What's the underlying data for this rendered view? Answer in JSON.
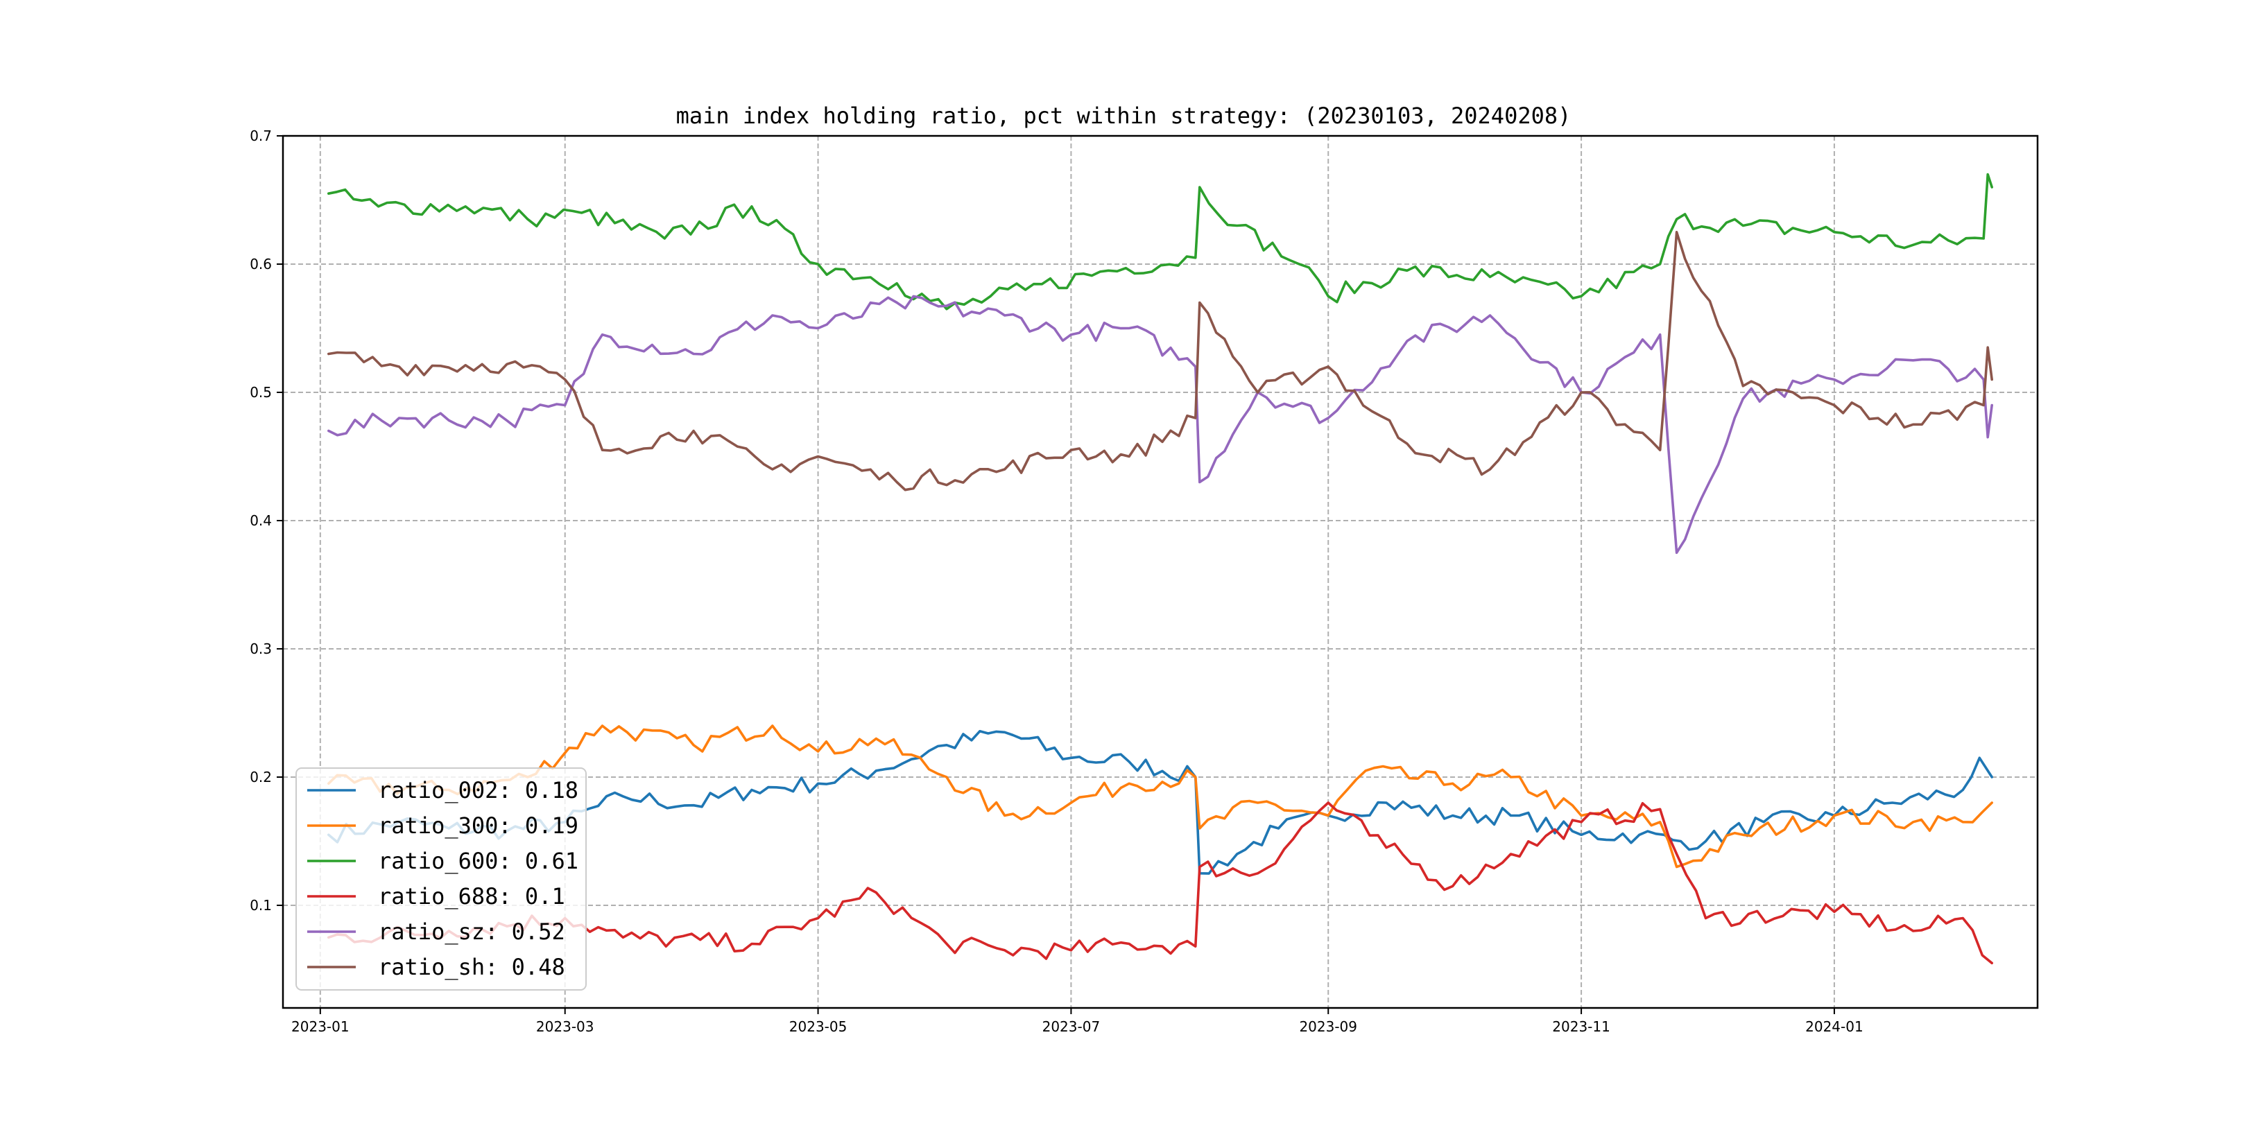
{
  "chart_data": {
    "type": "line",
    "title": "main index holding ratio, pct within strategy: (20230103, 20240208)",
    "xlabel": "",
    "ylabel": "",
    "x_range": [
      "2022-12-23",
      "2024-02-19"
    ],
    "ylim": [
      0.02,
      0.7
    ],
    "x_ticks": [
      "2023-01",
      "2023-03",
      "2023-05",
      "2023-07",
      "2023-09",
      "2023-11",
      "2024-01"
    ],
    "y_ticks": [
      "0.1",
      "0.2",
      "0.3",
      "0.4",
      "0.5",
      "0.6",
      "0.7"
    ],
    "grid": true,
    "legend_position": "lower-left",
    "series": [
      {
        "name": "ratio_002",
        "legend": "ratio_002: 0.18",
        "color": "#1f77b4",
        "points": [
          [
            "2023-01-03",
            0.155
          ],
          [
            "2023-01-20",
            0.165
          ],
          [
            "2023-02-01",
            0.16
          ],
          [
            "2023-02-15",
            0.158
          ],
          [
            "2023-03-01",
            0.165
          ],
          [
            "2023-03-15",
            0.185
          ],
          [
            "2023-04-01",
            0.178
          ],
          [
            "2023-04-15",
            0.19
          ],
          [
            "2023-05-01",
            0.195
          ],
          [
            "2023-05-15",
            0.205
          ],
          [
            "2023-06-01",
            0.225
          ],
          [
            "2023-06-15",
            0.235
          ],
          [
            "2023-07-01",
            0.215
          ],
          [
            "2023-07-15",
            0.212
          ],
          [
            "2023-07-31",
            0.2
          ],
          [
            "2023-08-01",
            0.125
          ],
          [
            "2023-08-10",
            0.14
          ],
          [
            "2023-08-20",
            0.16
          ],
          [
            "2023-09-01",
            0.17
          ],
          [
            "2023-09-15",
            0.18
          ],
          [
            "2023-10-01",
            0.17
          ],
          [
            "2023-10-15",
            0.17
          ],
          [
            "2023-11-01",
            0.155
          ],
          [
            "2023-11-15",
            0.155
          ],
          [
            "2023-11-25",
            0.15
          ],
          [
            "2023-12-01",
            0.15
          ],
          [
            "2023-12-15",
            0.165
          ],
          [
            "2024-01-01",
            0.17
          ],
          [
            "2024-01-15",
            0.18
          ],
          [
            "2024-02-01",
            0.19
          ],
          [
            "2024-02-05",
            0.215
          ],
          [
            "2024-02-08",
            0.2
          ]
        ]
      },
      {
        "name": "ratio_300",
        "legend": "ratio_300: 0.19",
        "color": "#ff7f0e",
        "points": [
          [
            "2023-01-03",
            0.195
          ],
          [
            "2023-02-01",
            0.19
          ],
          [
            "2023-02-20",
            0.2
          ],
          [
            "2023-03-10",
            0.24
          ],
          [
            "2023-04-01",
            0.225
          ],
          [
            "2023-04-20",
            0.24
          ],
          [
            "2023-05-01",
            0.22
          ],
          [
            "2023-05-15",
            0.23
          ],
          [
            "2023-06-01",
            0.2
          ],
          [
            "2023-06-15",
            0.17
          ],
          [
            "2023-07-01",
            0.18
          ],
          [
            "2023-07-15",
            0.195
          ],
          [
            "2023-07-31",
            0.2
          ],
          [
            "2023-08-01",
            0.16
          ],
          [
            "2023-08-15",
            0.18
          ],
          [
            "2023-09-01",
            0.17
          ],
          [
            "2023-09-10",
            0.205
          ],
          [
            "2023-10-01",
            0.195
          ],
          [
            "2023-10-15",
            0.2
          ],
          [
            "2023-11-01",
            0.17
          ],
          [
            "2023-11-20",
            0.165
          ],
          [
            "2023-11-24",
            0.13
          ],
          [
            "2023-12-10",
            0.155
          ],
          [
            "2024-01-01",
            0.17
          ],
          [
            "2024-01-20",
            0.165
          ],
          [
            "2024-02-01",
            0.165
          ],
          [
            "2024-02-08",
            0.18
          ]
        ]
      },
      {
        "name": "ratio_600",
        "legend": "ratio_600: 0.61",
        "color": "#2ca02c",
        "points": [
          [
            "2023-01-03",
            0.655
          ],
          [
            "2023-01-15",
            0.645
          ],
          [
            "2023-02-05",
            0.645
          ],
          [
            "2023-02-20",
            0.635
          ],
          [
            "2023-03-05",
            0.64
          ],
          [
            "2023-03-25",
            0.62
          ],
          [
            "2023-04-15",
            0.645
          ],
          [
            "2023-05-01",
            0.6
          ],
          [
            "2023-05-20",
            0.585
          ],
          [
            "2023-06-01",
            0.565
          ],
          [
            "2023-06-20",
            0.58
          ],
          [
            "2023-07-10",
            0.595
          ],
          [
            "2023-07-31",
            0.605
          ],
          [
            "2023-08-01",
            0.66
          ],
          [
            "2023-08-10",
            0.63
          ],
          [
            "2023-08-25",
            0.6
          ],
          [
            "2023-09-01",
            0.575
          ],
          [
            "2023-09-20",
            0.595
          ],
          [
            "2023-10-10",
            0.59
          ],
          [
            "2023-11-01",
            0.575
          ],
          [
            "2023-11-20",
            0.6
          ],
          [
            "2023-11-24",
            0.635
          ],
          [
            "2023-12-10",
            0.63
          ],
          [
            "2024-01-01",
            0.625
          ],
          [
            "2024-01-20",
            0.615
          ],
          [
            "2024-02-06",
            0.62
          ],
          [
            "2024-02-07",
            0.67
          ],
          [
            "2024-02-08",
            0.66
          ]
        ]
      },
      {
        "name": "ratio_688",
        "legend": "ratio_688: 0.1",
        "color": "#d62728",
        "points": [
          [
            "2023-01-03",
            0.075
          ],
          [
            "2023-02-01",
            0.08
          ],
          [
            "2023-03-01",
            0.09
          ],
          [
            "2023-03-15",
            0.075
          ],
          [
            "2023-04-15",
            0.07
          ],
          [
            "2023-05-01",
            0.09
          ],
          [
            "2023-05-15",
            0.11
          ],
          [
            "2023-06-01",
            0.07
          ],
          [
            "2023-06-15",
            0.065
          ],
          [
            "2023-07-01",
            0.065
          ],
          [
            "2023-07-15",
            0.07
          ],
          [
            "2023-07-31",
            0.068
          ],
          [
            "2023-08-01",
            0.13
          ],
          [
            "2023-08-15",
            0.125
          ],
          [
            "2023-09-01",
            0.18
          ],
          [
            "2023-09-15",
            0.145
          ],
          [
            "2023-10-01",
            0.115
          ],
          [
            "2023-10-15",
            0.14
          ],
          [
            "2023-11-01",
            0.165
          ],
          [
            "2023-11-20",
            0.175
          ],
          [
            "2023-11-24",
            0.14
          ],
          [
            "2023-12-01",
            0.09
          ],
          [
            "2024-01-01",
            0.095
          ],
          [
            "2024-01-20",
            0.08
          ],
          [
            "2024-02-01",
            0.09
          ],
          [
            "2024-02-08",
            0.055
          ]
        ]
      },
      {
        "name": "ratio_sz",
        "legend": "ratio_sz: 0.52",
        "color": "#9467bd",
        "points": [
          [
            "2023-01-03",
            0.47
          ],
          [
            "2023-01-20",
            0.48
          ],
          [
            "2023-02-15",
            0.478
          ],
          [
            "2023-03-01",
            0.49
          ],
          [
            "2023-03-10",
            0.545
          ],
          [
            "2023-04-01",
            0.53
          ],
          [
            "2023-04-20",
            0.56
          ],
          [
            "2023-05-01",
            0.55
          ],
          [
            "2023-05-20",
            0.57
          ],
          [
            "2023-06-15",
            0.56
          ],
          [
            "2023-07-01",
            0.545
          ],
          [
            "2023-07-15",
            0.55
          ],
          [
            "2023-07-31",
            0.52
          ],
          [
            "2023-08-01",
            0.43
          ],
          [
            "2023-08-15",
            0.5
          ],
          [
            "2023-09-01",
            0.48
          ],
          [
            "2023-09-20",
            0.54
          ],
          [
            "2023-10-10",
            0.56
          ],
          [
            "2023-11-01",
            0.5
          ],
          [
            "2023-11-20",
            0.545
          ],
          [
            "2023-11-24",
            0.375
          ],
          [
            "2023-12-10",
            0.495
          ],
          [
            "2024-01-01",
            0.51
          ],
          [
            "2024-01-20",
            0.525
          ],
          [
            "2024-02-06",
            0.51
          ],
          [
            "2024-02-07",
            0.465
          ],
          [
            "2024-02-08",
            0.49
          ]
        ]
      },
      {
        "name": "ratio_sh",
        "legend": "ratio_sh: 0.48",
        "color": "#8c564b",
        "points": [
          [
            "2023-01-03",
            0.53
          ],
          [
            "2023-01-20",
            0.52
          ],
          [
            "2023-02-15",
            0.522
          ],
          [
            "2023-03-01",
            0.51
          ],
          [
            "2023-03-10",
            0.455
          ],
          [
            "2023-04-01",
            0.47
          ],
          [
            "2023-04-20",
            0.44
          ],
          [
            "2023-05-01",
            0.45
          ],
          [
            "2023-05-20",
            0.43
          ],
          [
            "2023-06-15",
            0.44
          ],
          [
            "2023-07-01",
            0.455
          ],
          [
            "2023-07-15",
            0.45
          ],
          [
            "2023-07-31",
            0.48
          ],
          [
            "2023-08-01",
            0.57
          ],
          [
            "2023-08-15",
            0.5
          ],
          [
            "2023-09-01",
            0.52
          ],
          [
            "2023-09-20",
            0.46
          ],
          [
            "2023-10-10",
            0.44
          ],
          [
            "2023-11-01",
            0.5
          ],
          [
            "2023-11-20",
            0.455
          ],
          [
            "2023-11-24",
            0.625
          ],
          [
            "2023-12-10",
            0.505
          ],
          [
            "2024-01-01",
            0.49
          ],
          [
            "2024-01-20",
            0.475
          ],
          [
            "2024-02-06",
            0.49
          ],
          [
            "2024-02-07",
            0.535
          ],
          [
            "2024-02-08",
            0.51
          ]
        ]
      }
    ]
  }
}
